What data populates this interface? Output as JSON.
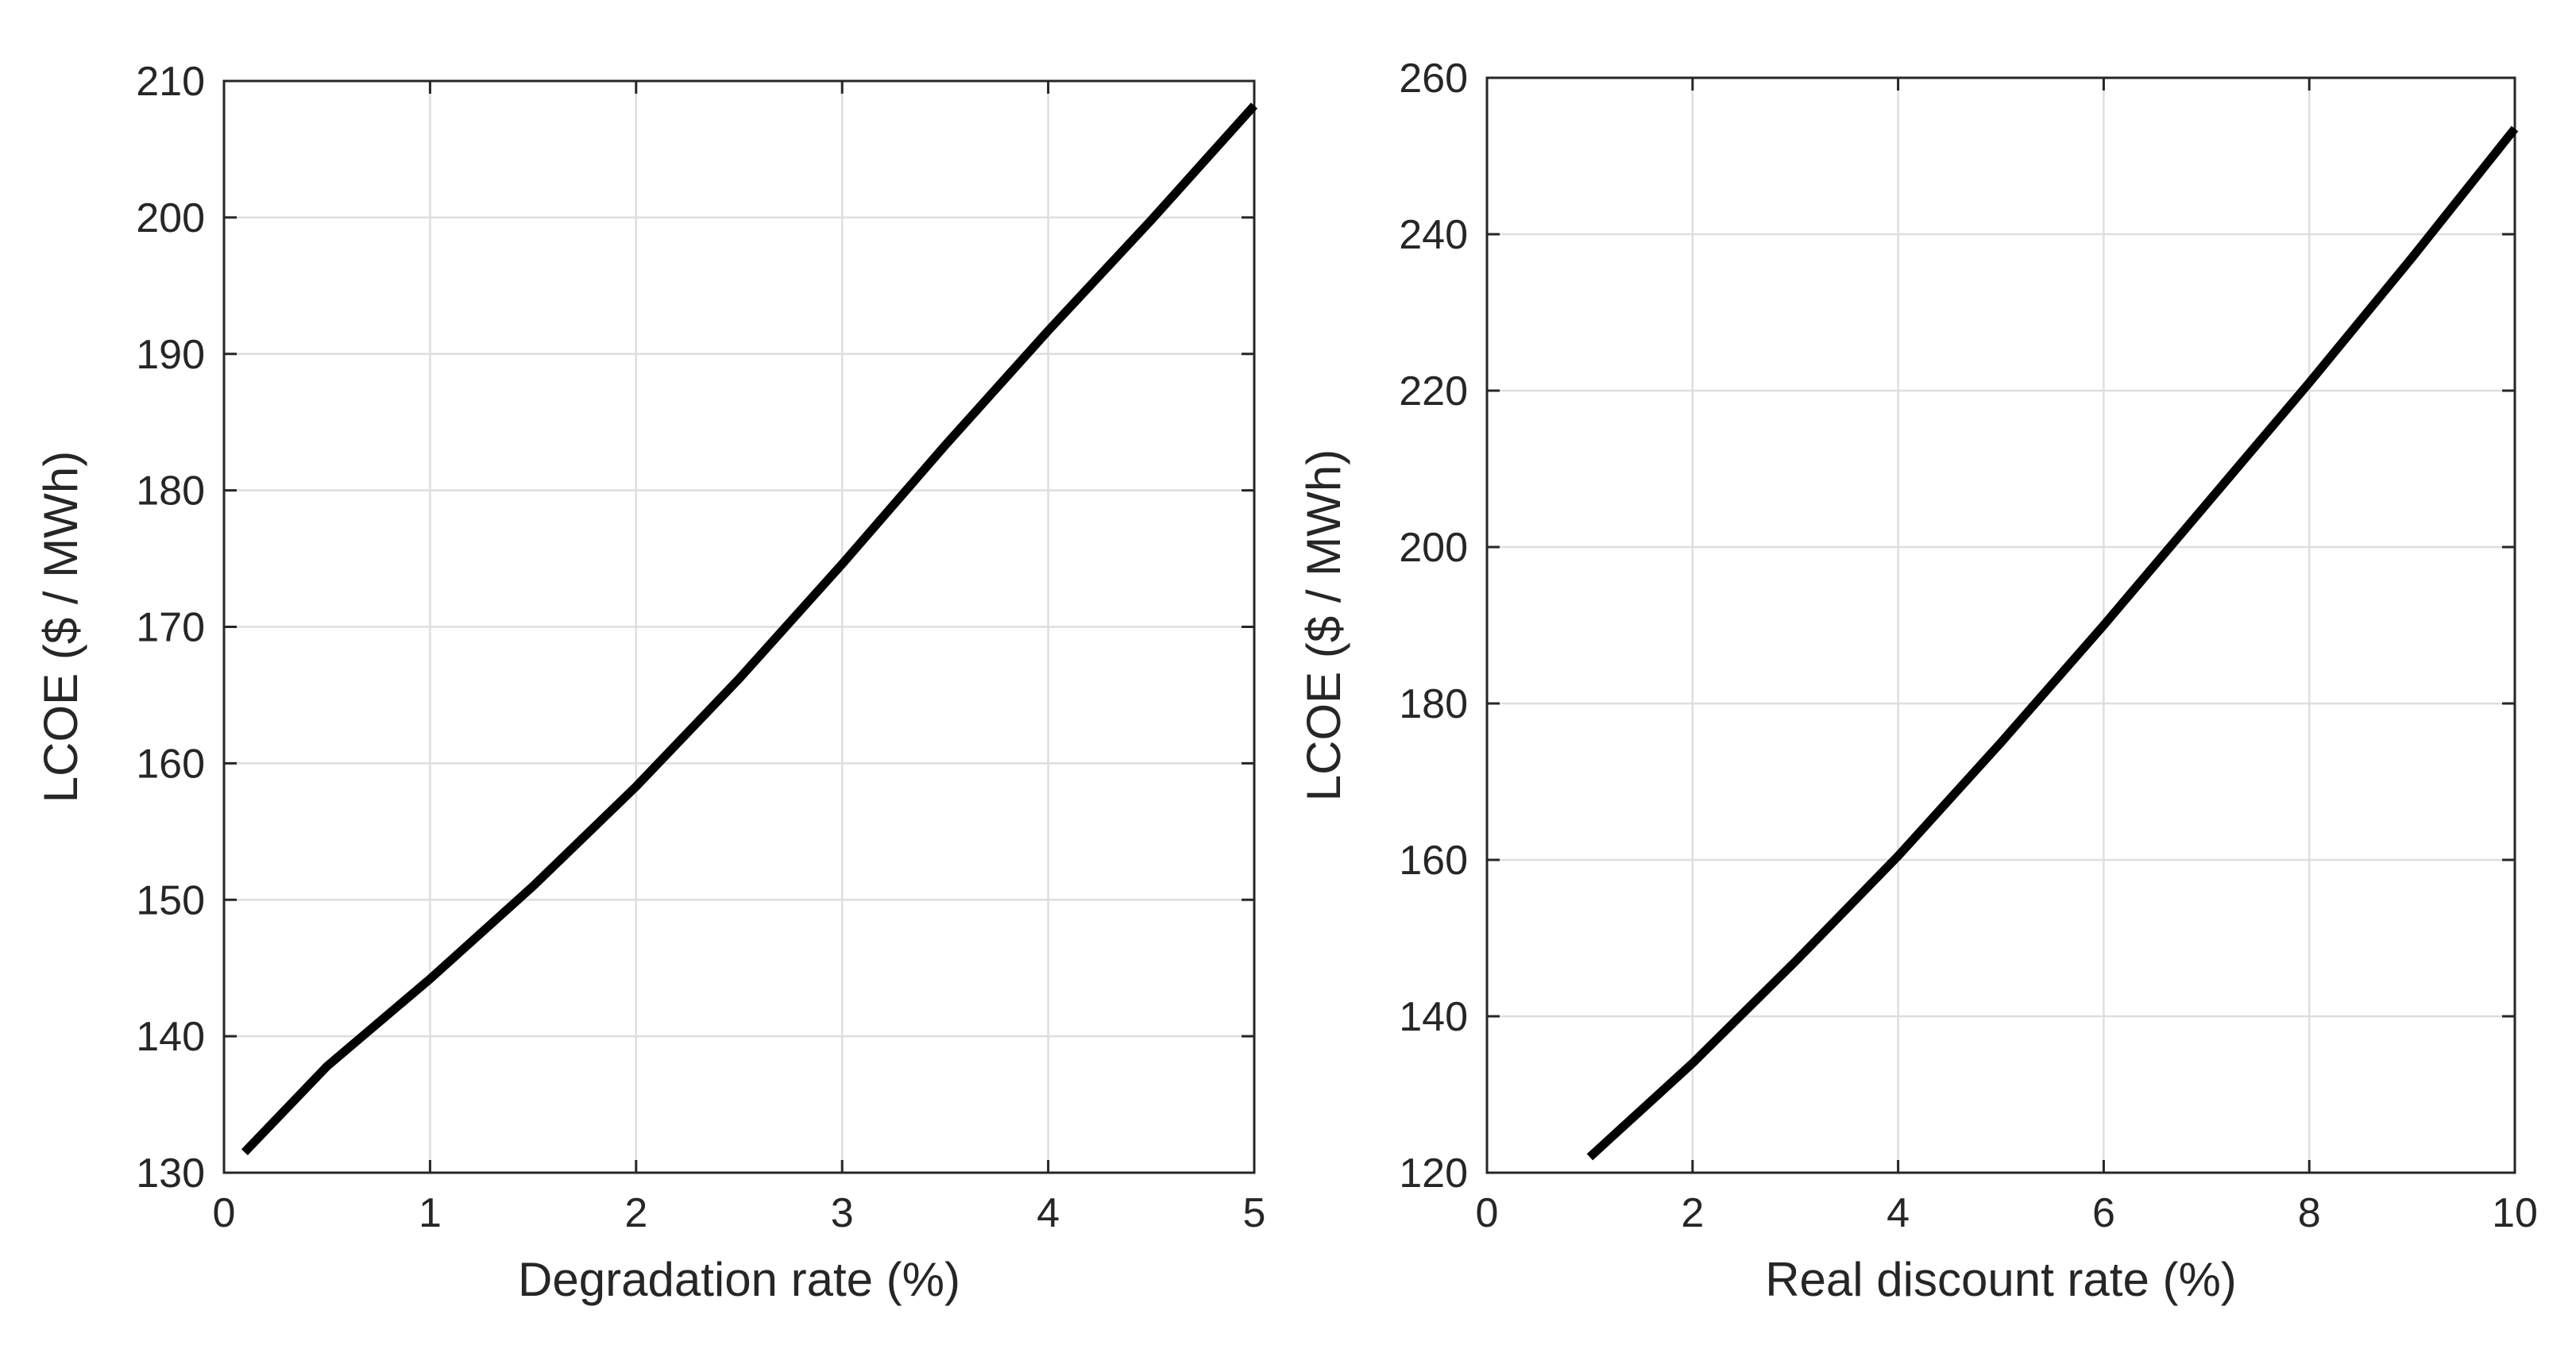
{
  "chart_data": [
    {
      "type": "line",
      "xlabel": "Degradation rate (%)",
      "ylabel": "LCOE ($ / MWh)",
      "xlim": [
        0,
        5
      ],
      "ylim": [
        130,
        210
      ],
      "xticks": [
        0,
        1,
        2,
        3,
        4,
        5
      ],
      "yticks": [
        130,
        140,
        150,
        160,
        170,
        180,
        190,
        200,
        210
      ],
      "grid": true,
      "series": [
        {
          "color": "#000000",
          "x": [
            0.1,
            0.5,
            1.0,
            1.5,
            2.0,
            2.5,
            3.0,
            3.5,
            4.0,
            4.5,
            5.0
          ],
          "y": [
            131.5,
            137.8,
            144.2,
            151.0,
            158.3,
            166.2,
            174.6,
            183.3,
            191.7,
            199.8,
            208.2
          ]
        }
      ]
    },
    {
      "type": "line",
      "xlabel": "Real discount rate (%)",
      "ylabel": "LCOE ($ / MWh)",
      "xlim": [
        0,
        10
      ],
      "ylim": [
        120,
        260
      ],
      "xticks": [
        0,
        2,
        4,
        6,
        8,
        10
      ],
      "yticks": [
        120,
        140,
        160,
        180,
        200,
        220,
        240,
        260
      ],
      "grid": true,
      "series": [
        {
          "color": "#000000",
          "x": [
            1,
            2,
            3,
            4,
            5,
            6,
            7,
            8,
            9,
            10
          ],
          "y": [
            122,
            134,
            147,
            160.5,
            175,
            190,
            205.5,
            221,
            237,
            253.5
          ]
        }
      ]
    }
  ]
}
